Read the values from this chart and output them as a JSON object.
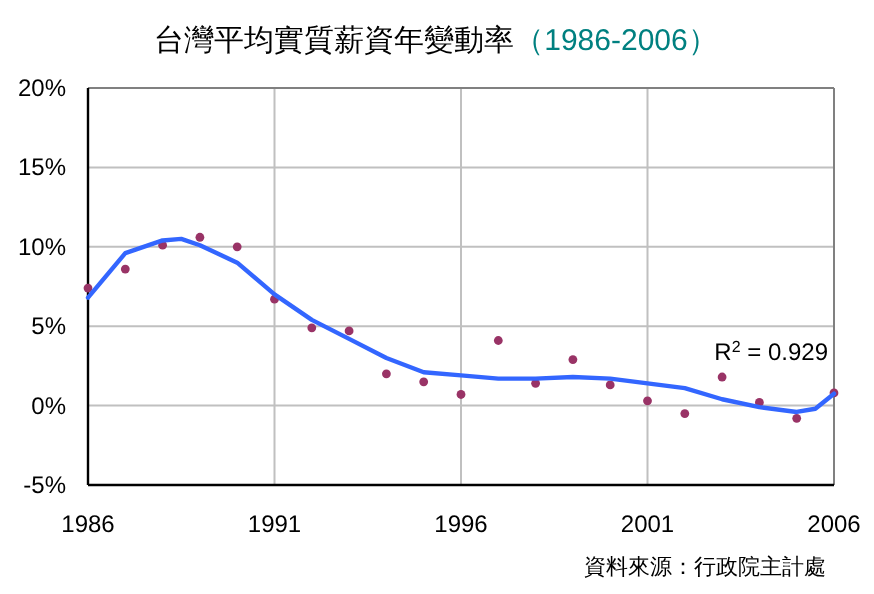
{
  "chart_data": {
    "type": "scatter",
    "title": "台灣平均實質薪資年變動率",
    "subtitle": "（1986-2006）",
    "x": [
      1986,
      1987,
      1988,
      1989,
      1990,
      1991,
      1992,
      1993,
      1994,
      1995,
      1996,
      1997,
      1998,
      1999,
      2000,
      2001,
      2002,
      2003,
      2004,
      2005,
      2006
    ],
    "series": [
      {
        "color": "#993366",
        "marker": "circle",
        "values": [
          7.4,
          8.6,
          10.1,
          10.6,
          10.0,
          6.7,
          4.9,
          4.7,
          2.0,
          1.5,
          0.7,
          4.1,
          1.4,
          2.9,
          1.3,
          0.3,
          -0.5,
          1.8,
          0.2,
          -0.8,
          0.8
        ]
      },
      {
        "type": "line",
        "color": "#3366ff",
        "marker": "none",
        "x": [
          1986,
          1987,
          1988,
          1988.5,
          1989,
          1990,
          1991,
          1992,
          1993,
          1994,
          1995,
          1996,
          1997,
          1998,
          1999,
          2000,
          2001,
          2002,
          2003,
          2004,
          2005,
          2005.5,
          2006
        ],
        "values": [
          6.8,
          9.6,
          10.4,
          10.5,
          10.1,
          9.0,
          7.0,
          5.4,
          4.2,
          3.0,
          2.1,
          1.9,
          1.7,
          1.7,
          1.8,
          1.7,
          1.4,
          1.1,
          0.4,
          -0.1,
          -0.4,
          -0.2,
          0.75
        ]
      }
    ],
    "xlim": [
      1986,
      2006
    ],
    "xticks": [
      1986,
      1991,
      1996,
      2001,
      2006
    ],
    "ylim": [
      -5,
      20
    ],
    "yticks": [
      {
        "value": -5,
        "label": "-5%"
      },
      {
        "value": 0,
        "label": "0%"
      },
      {
        "value": 5,
        "label": "5%"
      },
      {
        "value": 10,
        "label": "10%"
      },
      {
        "value": 15,
        "label": "15%"
      },
      {
        "value": 20,
        "label": "20%"
      }
    ],
    "grid": true,
    "annotations": [
      "R$^{2}$ = 0.929",
      "資料來源：行政院主計處"
    ]
  }
}
